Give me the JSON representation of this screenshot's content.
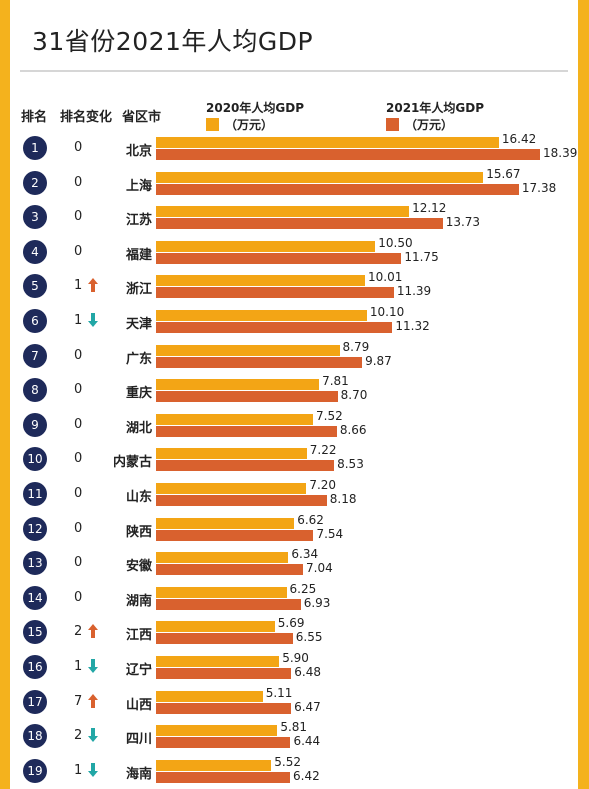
{
  "title": "31省份2021年人均GDP",
  "headers": {
    "rank": "排名",
    "change": "排名变化",
    "province": "省区市"
  },
  "legend": {
    "s2020": {
      "label": "2020年人均GDP",
      "unit": "（万元）",
      "color": "#f3a515"
    },
    "s2021": {
      "label": "2021年人均GDP",
      "unit": "（万元）",
      "color": "#d9612e"
    }
  },
  "colors": {
    "up": "#d9612e",
    "down": "#22a7a6",
    "rank_bg": "#1e2a5a"
  },
  "chart_data": {
    "type": "bar",
    "orientation": "horizontal",
    "title": "31省份2021年人均GDP",
    "categories": [
      "北京",
      "上海",
      "江苏",
      "福建",
      "浙江",
      "天津",
      "广东",
      "重庆",
      "湖北",
      "内蒙古",
      "山东",
      "陕西",
      "安徽",
      "湖南",
      "江西",
      "辽宁",
      "山西",
      "四川",
      "海南"
    ],
    "series": [
      {
        "name": "2020年人均GDP（万元）",
        "values": [
          16.42,
          15.67,
          12.12,
          10.5,
          10.01,
          10.1,
          8.79,
          7.81,
          7.52,
          7.22,
          7.2,
          6.62,
          6.34,
          6.25,
          5.69,
          5.9,
          5.11,
          5.81,
          5.52
        ]
      },
      {
        "name": "2021年人均GDP（万元）",
        "values": [
          18.39,
          17.38,
          13.73,
          11.75,
          11.39,
          11.32,
          9.87,
          8.7,
          8.66,
          8.53,
          8.18,
          7.54,
          7.04,
          6.93,
          6.55,
          6.48,
          6.47,
          6.44,
          6.42
        ]
      }
    ],
    "rows": [
      {
        "rank": "1",
        "change": "0",
        "dir": "",
        "province": "北京",
        "v2020": "16.42",
        "v2021": "18.39"
      },
      {
        "rank": "2",
        "change": "0",
        "dir": "",
        "province": "上海",
        "v2020": "15.67",
        "v2021": "17.38"
      },
      {
        "rank": "3",
        "change": "0",
        "dir": "",
        "province": "江苏",
        "v2020": "12.12",
        "v2021": "13.73"
      },
      {
        "rank": "4",
        "change": "0",
        "dir": "",
        "province": "福建",
        "v2020": "10.50",
        "v2021": "11.75"
      },
      {
        "rank": "5",
        "change": "1",
        "dir": "up",
        "province": "浙江",
        "v2020": "10.01",
        "v2021": "11.39"
      },
      {
        "rank": "6",
        "change": "1",
        "dir": "down",
        "province": "天津",
        "v2020": "10.10",
        "v2021": "11.32"
      },
      {
        "rank": "7",
        "change": "0",
        "dir": "",
        "province": "广东",
        "v2020": "8.79",
        "v2021": "9.87"
      },
      {
        "rank": "8",
        "change": "0",
        "dir": "",
        "province": "重庆",
        "v2020": "7.81",
        "v2021": "8.70"
      },
      {
        "rank": "9",
        "change": "0",
        "dir": "",
        "province": "湖北",
        "v2020": "7.52",
        "v2021": "8.66"
      },
      {
        "rank": "10",
        "change": "0",
        "dir": "",
        "province": "内蒙古",
        "v2020": "7.22",
        "v2021": "8.53"
      },
      {
        "rank": "11",
        "change": "0",
        "dir": "",
        "province": "山东",
        "v2020": "7.20",
        "v2021": "8.18"
      },
      {
        "rank": "12",
        "change": "0",
        "dir": "",
        "province": "陕西",
        "v2020": "6.62",
        "v2021": "7.54"
      },
      {
        "rank": "13",
        "change": "0",
        "dir": "",
        "province": "安徽",
        "v2020": "6.34",
        "v2021": "7.04"
      },
      {
        "rank": "14",
        "change": "0",
        "dir": "",
        "province": "湖南",
        "v2020": "6.25",
        "v2021": "6.93"
      },
      {
        "rank": "15",
        "change": "2",
        "dir": "up",
        "province": "江西",
        "v2020": "5.69",
        "v2021": "6.55"
      },
      {
        "rank": "16",
        "change": "1",
        "dir": "down",
        "province": "辽宁",
        "v2020": "5.90",
        "v2021": "6.48"
      },
      {
        "rank": "17",
        "change": "7",
        "dir": "up",
        "province": "山西",
        "v2020": "5.11",
        "v2021": "6.47"
      },
      {
        "rank": "18",
        "change": "2",
        "dir": "down",
        "province": "四川",
        "v2020": "5.81",
        "v2021": "6.44"
      },
      {
        "rank": "19",
        "change": "1",
        "dir": "down",
        "province": "海南",
        "v2020": "5.52",
        "v2021": "6.42"
      }
    ]
  }
}
